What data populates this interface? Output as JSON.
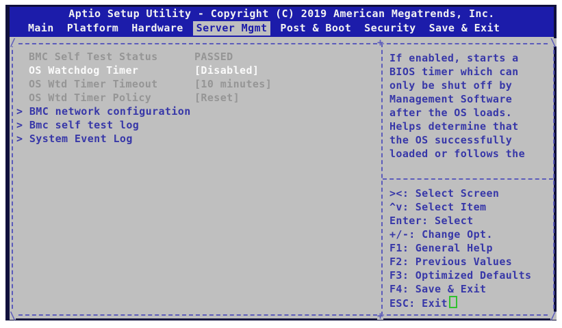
{
  "header": {
    "title": "Aptio Setup Utility - Copyright (C) 2019 American Megatrends, Inc.",
    "tabs": [
      {
        "label": "Main",
        "active": false
      },
      {
        "label": "Platform",
        "active": false
      },
      {
        "label": "Hardware",
        "active": false
      },
      {
        "label": "Server Mgmt",
        "active": true
      },
      {
        "label": "Post & Boot",
        "active": false
      },
      {
        "label": "Security",
        "active": false
      },
      {
        "label": "Save & Exit",
        "active": false
      }
    ]
  },
  "left_pane": {
    "items": [
      {
        "label": "BMC Self Test Status",
        "value": "PASSED",
        "state": "dim",
        "type": "setting"
      },
      {
        "label": "OS Watchdog Timer",
        "value": "[Disabled]",
        "state": "selected",
        "type": "setting"
      },
      {
        "label": "OS Wtd Timer Timeout",
        "value": "[10 minutes]",
        "state": "dim",
        "type": "setting"
      },
      {
        "label": "OS Wtd Timer Policy",
        "value": "[Reset]",
        "state": "dim",
        "type": "setting"
      },
      {
        "label": "> BMC network configuration",
        "type": "submenu"
      },
      {
        "label": "> Bmc self test log",
        "type": "submenu"
      },
      {
        "label": "> System Event Log",
        "type": "submenu"
      }
    ]
  },
  "help_pane": {
    "description_lines": [
      "If enabled, starts a",
      "BIOS timer which can",
      "only be shut off by",
      "Management Software",
      "after the OS loads.",
      "Helps determine that",
      "the OS successfully",
      "loaded or follows the"
    ],
    "hotkeys": [
      "><: Select Screen",
      "^v: Select Item",
      "Enter: Select",
      "+/-: Change Opt.",
      "F1: General Help",
      "F2: Previous Values",
      "F3: Optimized Defaults",
      "F4: Save & Exit",
      "ESC: Exit"
    ],
    "cursor_after_last_hotkey": true
  },
  "frame": {
    "corners": {
      "tl": "/",
      "tr": "\\",
      "bl": "\\",
      "br": "/",
      "junction_top": "+",
      "junction_bottom": "+"
    }
  },
  "colors": {
    "header_bg": "#1c1caa",
    "screen_bg": "#bfbfbf",
    "text_blue": "#3737a8",
    "border_blue": "#5b5bbb",
    "dim_text": "#959595",
    "selected_text": "#fbfbfb",
    "cursor_green": "#2fc12f"
  }
}
